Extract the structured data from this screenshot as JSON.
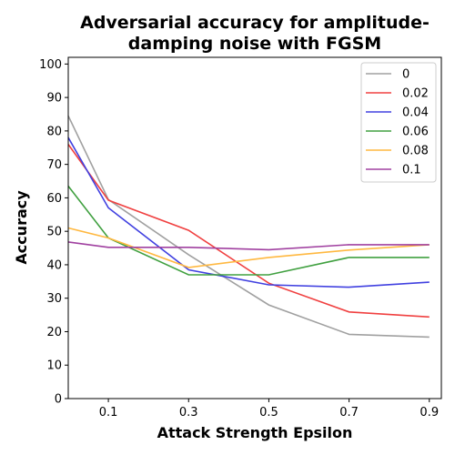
{
  "chart_data": {
    "type": "line",
    "title_lines": [
      "Adversarial accuracy for amplitude-",
      "damping noise with FGSM"
    ],
    "xlabel": "Attack Strength Epsilon",
    "ylabel": "Accuracy",
    "x": [
      0,
      0.1,
      0.3,
      0.5,
      0.7,
      0.9
    ],
    "xticks": [
      "0.1",
      "0.3",
      "0.5",
      "0.7",
      "0.9"
    ],
    "xtick_values": [
      0.1,
      0.3,
      0.5,
      0.7,
      0.9
    ],
    "xlim": [
      0,
      0.93
    ],
    "ylim": [
      0,
      102
    ],
    "yticks": [
      0,
      10,
      20,
      30,
      40,
      50,
      60,
      70,
      80,
      90,
      100
    ],
    "legend_position": "top-right",
    "grid": false,
    "series": [
      {
        "name": "0",
        "color": "#a0a0a0",
        "values": [
          84.5,
          59.5,
          43,
          28,
          19.2,
          18.4
        ]
      },
      {
        "name": "0.02",
        "color": "#f04040",
        "values": [
          76,
          59.3,
          50.3,
          34.5,
          25.9,
          24.4
        ]
      },
      {
        "name": "0.04",
        "color": "#4040e0",
        "values": [
          78,
          57,
          38.5,
          34,
          33.3,
          34.8
        ]
      },
      {
        "name": "0.06",
        "color": "#40a040",
        "values": [
          63.5,
          48,
          37,
          37,
          42.2,
          42.2
        ]
      },
      {
        "name": "0.08",
        "color": "#ffb840",
        "values": [
          51,
          48,
          39.2,
          42.2,
          44.4,
          46
        ]
      },
      {
        "name": "0.1",
        "color": "#a040a0",
        "values": [
          46.8,
          45.2,
          45.2,
          44.5,
          46,
          46
        ]
      }
    ]
  }
}
